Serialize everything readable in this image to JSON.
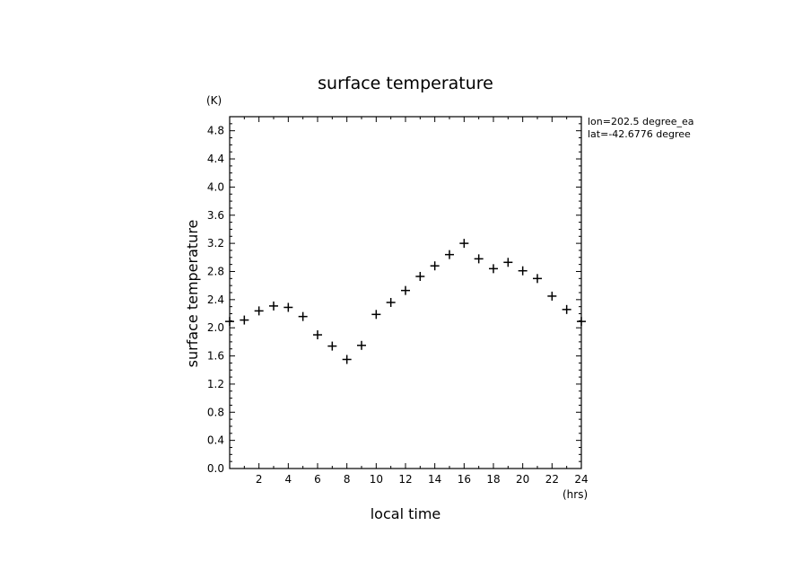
{
  "chart_data": {
    "type": "scatter",
    "title": "surface temperature",
    "xlabel": "local time",
    "ylabel": "surface temperature",
    "x_unit": "(hrs)",
    "y_unit": "(K)",
    "annotations": [
      "lon=202.5 degree_ea",
      "lat=-42.6776 degree"
    ],
    "xlim": [
      0,
      24
    ],
    "ylim": [
      0,
      5
    ],
    "x_ticks": [
      2,
      4,
      6,
      8,
      10,
      12,
      14,
      16,
      18,
      20,
      22,
      24
    ],
    "y_ticks": [
      "0.0",
      "0.4",
      "0.8",
      "1.2",
      "1.6",
      "2.0",
      "2.4",
      "2.8",
      "3.2",
      "3.6",
      "4.0",
      "4.4",
      "4.8"
    ],
    "grid": false,
    "marker": "plus",
    "x": [
      0,
      1,
      2,
      3,
      4,
      5,
      6,
      7,
      8,
      9,
      10,
      11,
      12,
      13,
      14,
      15,
      16,
      17,
      18,
      19,
      20,
      21,
      22,
      23,
      24
    ],
    "y": [
      2.09,
      2.11,
      2.24,
      2.31,
      2.29,
      2.16,
      1.9,
      1.74,
      1.55,
      1.75,
      2.19,
      2.36,
      2.53,
      2.73,
      2.88,
      3.04,
      3.2,
      2.98,
      2.84,
      2.93,
      2.81,
      2.7,
      2.45,
      2.26,
      2.09
    ]
  }
}
